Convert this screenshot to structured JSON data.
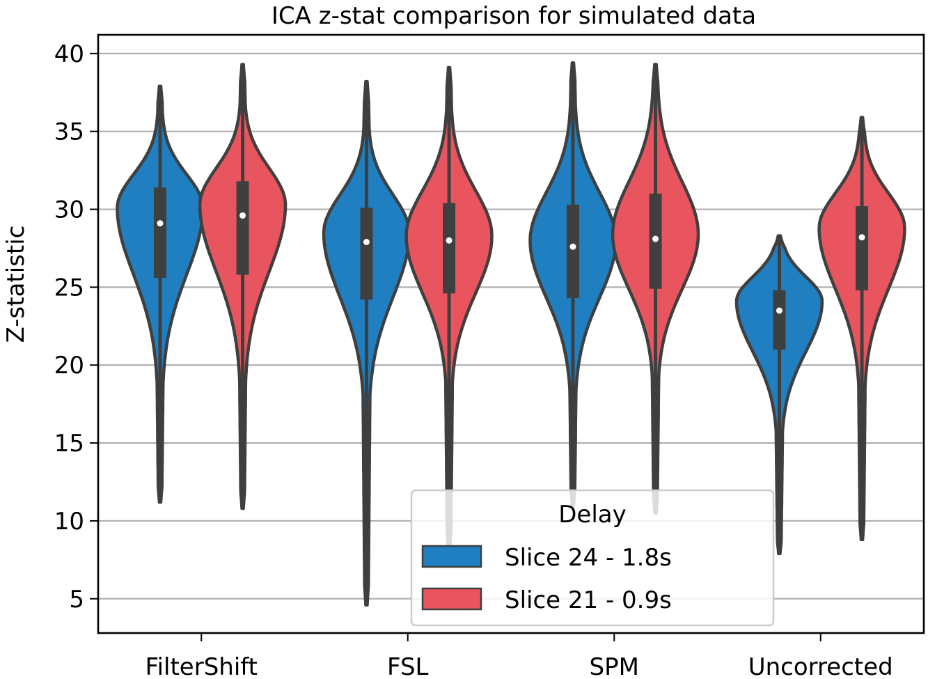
{
  "chart_data": {
    "type": "violin",
    "title": "ICA z-stat comparison for simulated data",
    "xlabel": "",
    "ylabel": "Z-statistic",
    "ylim": [
      2.8,
      41.2
    ],
    "yticks": [
      5,
      10,
      15,
      20,
      25,
      30,
      35,
      40
    ],
    "grid": "horizontal",
    "categories": [
      "FilterShift",
      "FSL",
      "SPM",
      "Uncorrected"
    ],
    "legend": {
      "title": "Delay",
      "placement": "lower-center"
    },
    "series": [
      {
        "name": "Slice 24 - 1.8s",
        "color": "#1f7fc1",
        "stats": [
          {
            "min": 11.2,
            "q1": 25.6,
            "median": 29.1,
            "q3": 31.4,
            "max": 37.9,
            "mode": 30.1
          },
          {
            "min": 4.6,
            "q1": 24.2,
            "median": 27.9,
            "q3": 30.1,
            "max": 38.2,
            "mode": 28.5
          },
          {
            "min": 11.0,
            "q1": 24.3,
            "median": 27.6,
            "q3": 30.3,
            "max": 39.4,
            "mode": 28.0
          },
          {
            "min": 7.9,
            "q1": 21.0,
            "median": 23.5,
            "q3": 24.8,
            "max": 28.3,
            "mode": 24.1
          }
        ]
      },
      {
        "name": "Slice 21 - 0.9s",
        "color": "#e8555f",
        "stats": [
          {
            "min": 10.8,
            "q1": 25.8,
            "median": 29.6,
            "q3": 31.8,
            "max": 39.3,
            "mode": 30.3
          },
          {
            "min": 8.2,
            "q1": 24.6,
            "median": 28.0,
            "q3": 30.4,
            "max": 39.1,
            "mode": 28.3
          },
          {
            "min": 10.5,
            "q1": 24.9,
            "median": 28.1,
            "q3": 31.0,
            "max": 39.3,
            "mode": 28.4
          },
          {
            "min": 8.8,
            "q1": 24.8,
            "median": 28.2,
            "q3": 30.2,
            "max": 35.9,
            "mode": 28.8
          }
        ]
      }
    ]
  }
}
